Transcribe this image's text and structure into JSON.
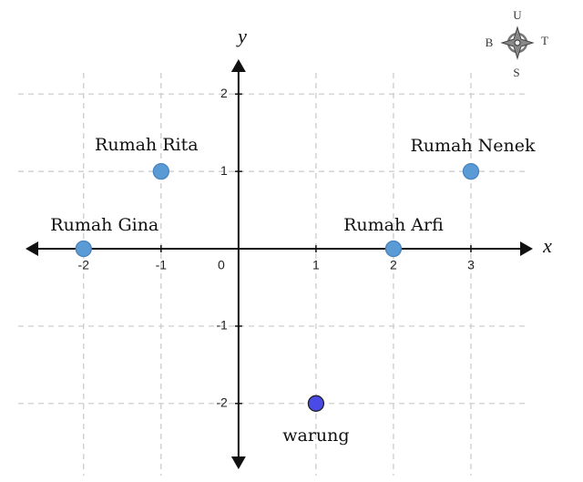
{
  "chart_data": {
    "type": "scatter",
    "xlabel": "x",
    "ylabel": "y",
    "xlim": [
      -2.75,
      3.8
    ],
    "ylim": [
      -2.85,
      2.45
    ],
    "xticks": [
      -2,
      -1,
      0,
      1,
      2,
      3
    ],
    "yticks": [
      -2,
      -1,
      1,
      2
    ],
    "grid": true,
    "x": [
      -1,
      3,
      -2,
      2,
      1
    ],
    "values": [
      1,
      1,
      0,
      0,
      -2
    ],
    "point_labels": [
      "Rumah Rita",
      "Rumah Nenek",
      "Rumah Gina",
      "Rumah Arfi",
      "warung"
    ],
    "colors": [
      "#5b9bd5",
      "#5b9bd5",
      "#5b9bd5",
      "#5b9bd5",
      "#4a4ae6"
    ],
    "compass": {
      "north": "U",
      "west": "B",
      "east": "T",
      "south": "S"
    }
  }
}
